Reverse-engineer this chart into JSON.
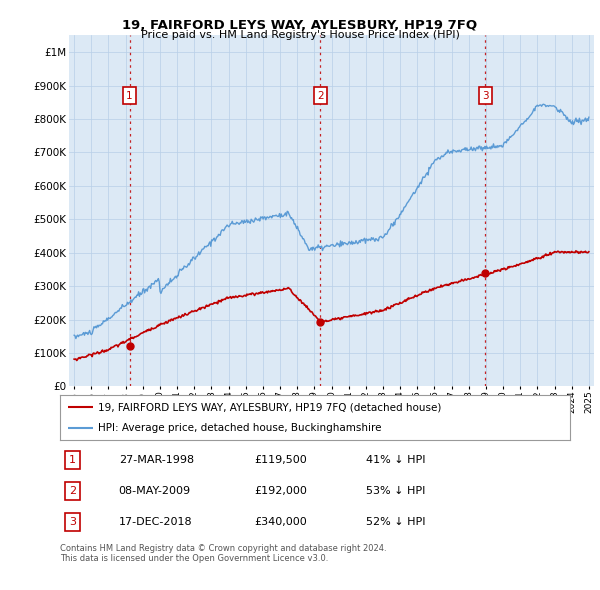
{
  "title": "19, FAIRFORD LEYS WAY, AYLESBURY, HP19 7FQ",
  "subtitle": "Price paid vs. HM Land Registry's House Price Index (HPI)",
  "yticks": [
    0,
    100000,
    200000,
    300000,
    400000,
    500000,
    600000,
    700000,
    800000,
    900000,
    1000000
  ],
  "ytick_labels": [
    "£0",
    "£100K",
    "£200K",
    "£300K",
    "£400K",
    "£500K",
    "£600K",
    "£700K",
    "£800K",
    "£900K",
    "£1M"
  ],
  "xlim_start": 1994.7,
  "xlim_end": 2025.3,
  "ylim": [
    0,
    1050000
  ],
  "hpi_color": "#5b9bd5",
  "price_color": "#c00000",
  "background_color": "#dce9f5",
  "sale_points": [
    {
      "date_num": 1998.23,
      "price": 119500,
      "label": "1"
    },
    {
      "date_num": 2009.35,
      "price": 192000,
      "label": "2"
    },
    {
      "date_num": 2018.96,
      "price": 340000,
      "label": "3"
    }
  ],
  "legend_line1": "19, FAIRFORD LEYS WAY, AYLESBURY, HP19 7FQ (detached house)",
  "legend_line2": "HPI: Average price, detached house, Buckinghamshire",
  "table_rows": [
    [
      "1",
      "27-MAR-1998",
      "£119,500",
      "41% ↓ HPI"
    ],
    [
      "2",
      "08-MAY-2009",
      "£192,000",
      "53% ↓ HPI"
    ],
    [
      "3",
      "17-DEC-2018",
      "£340,000",
      "52% ↓ HPI"
    ]
  ],
  "footnote": "Contains HM Land Registry data © Crown copyright and database right 2024.\nThis data is licensed under the Open Government Licence v3.0.",
  "grid_color": "#b8cfe8",
  "box_color": "#c00000"
}
